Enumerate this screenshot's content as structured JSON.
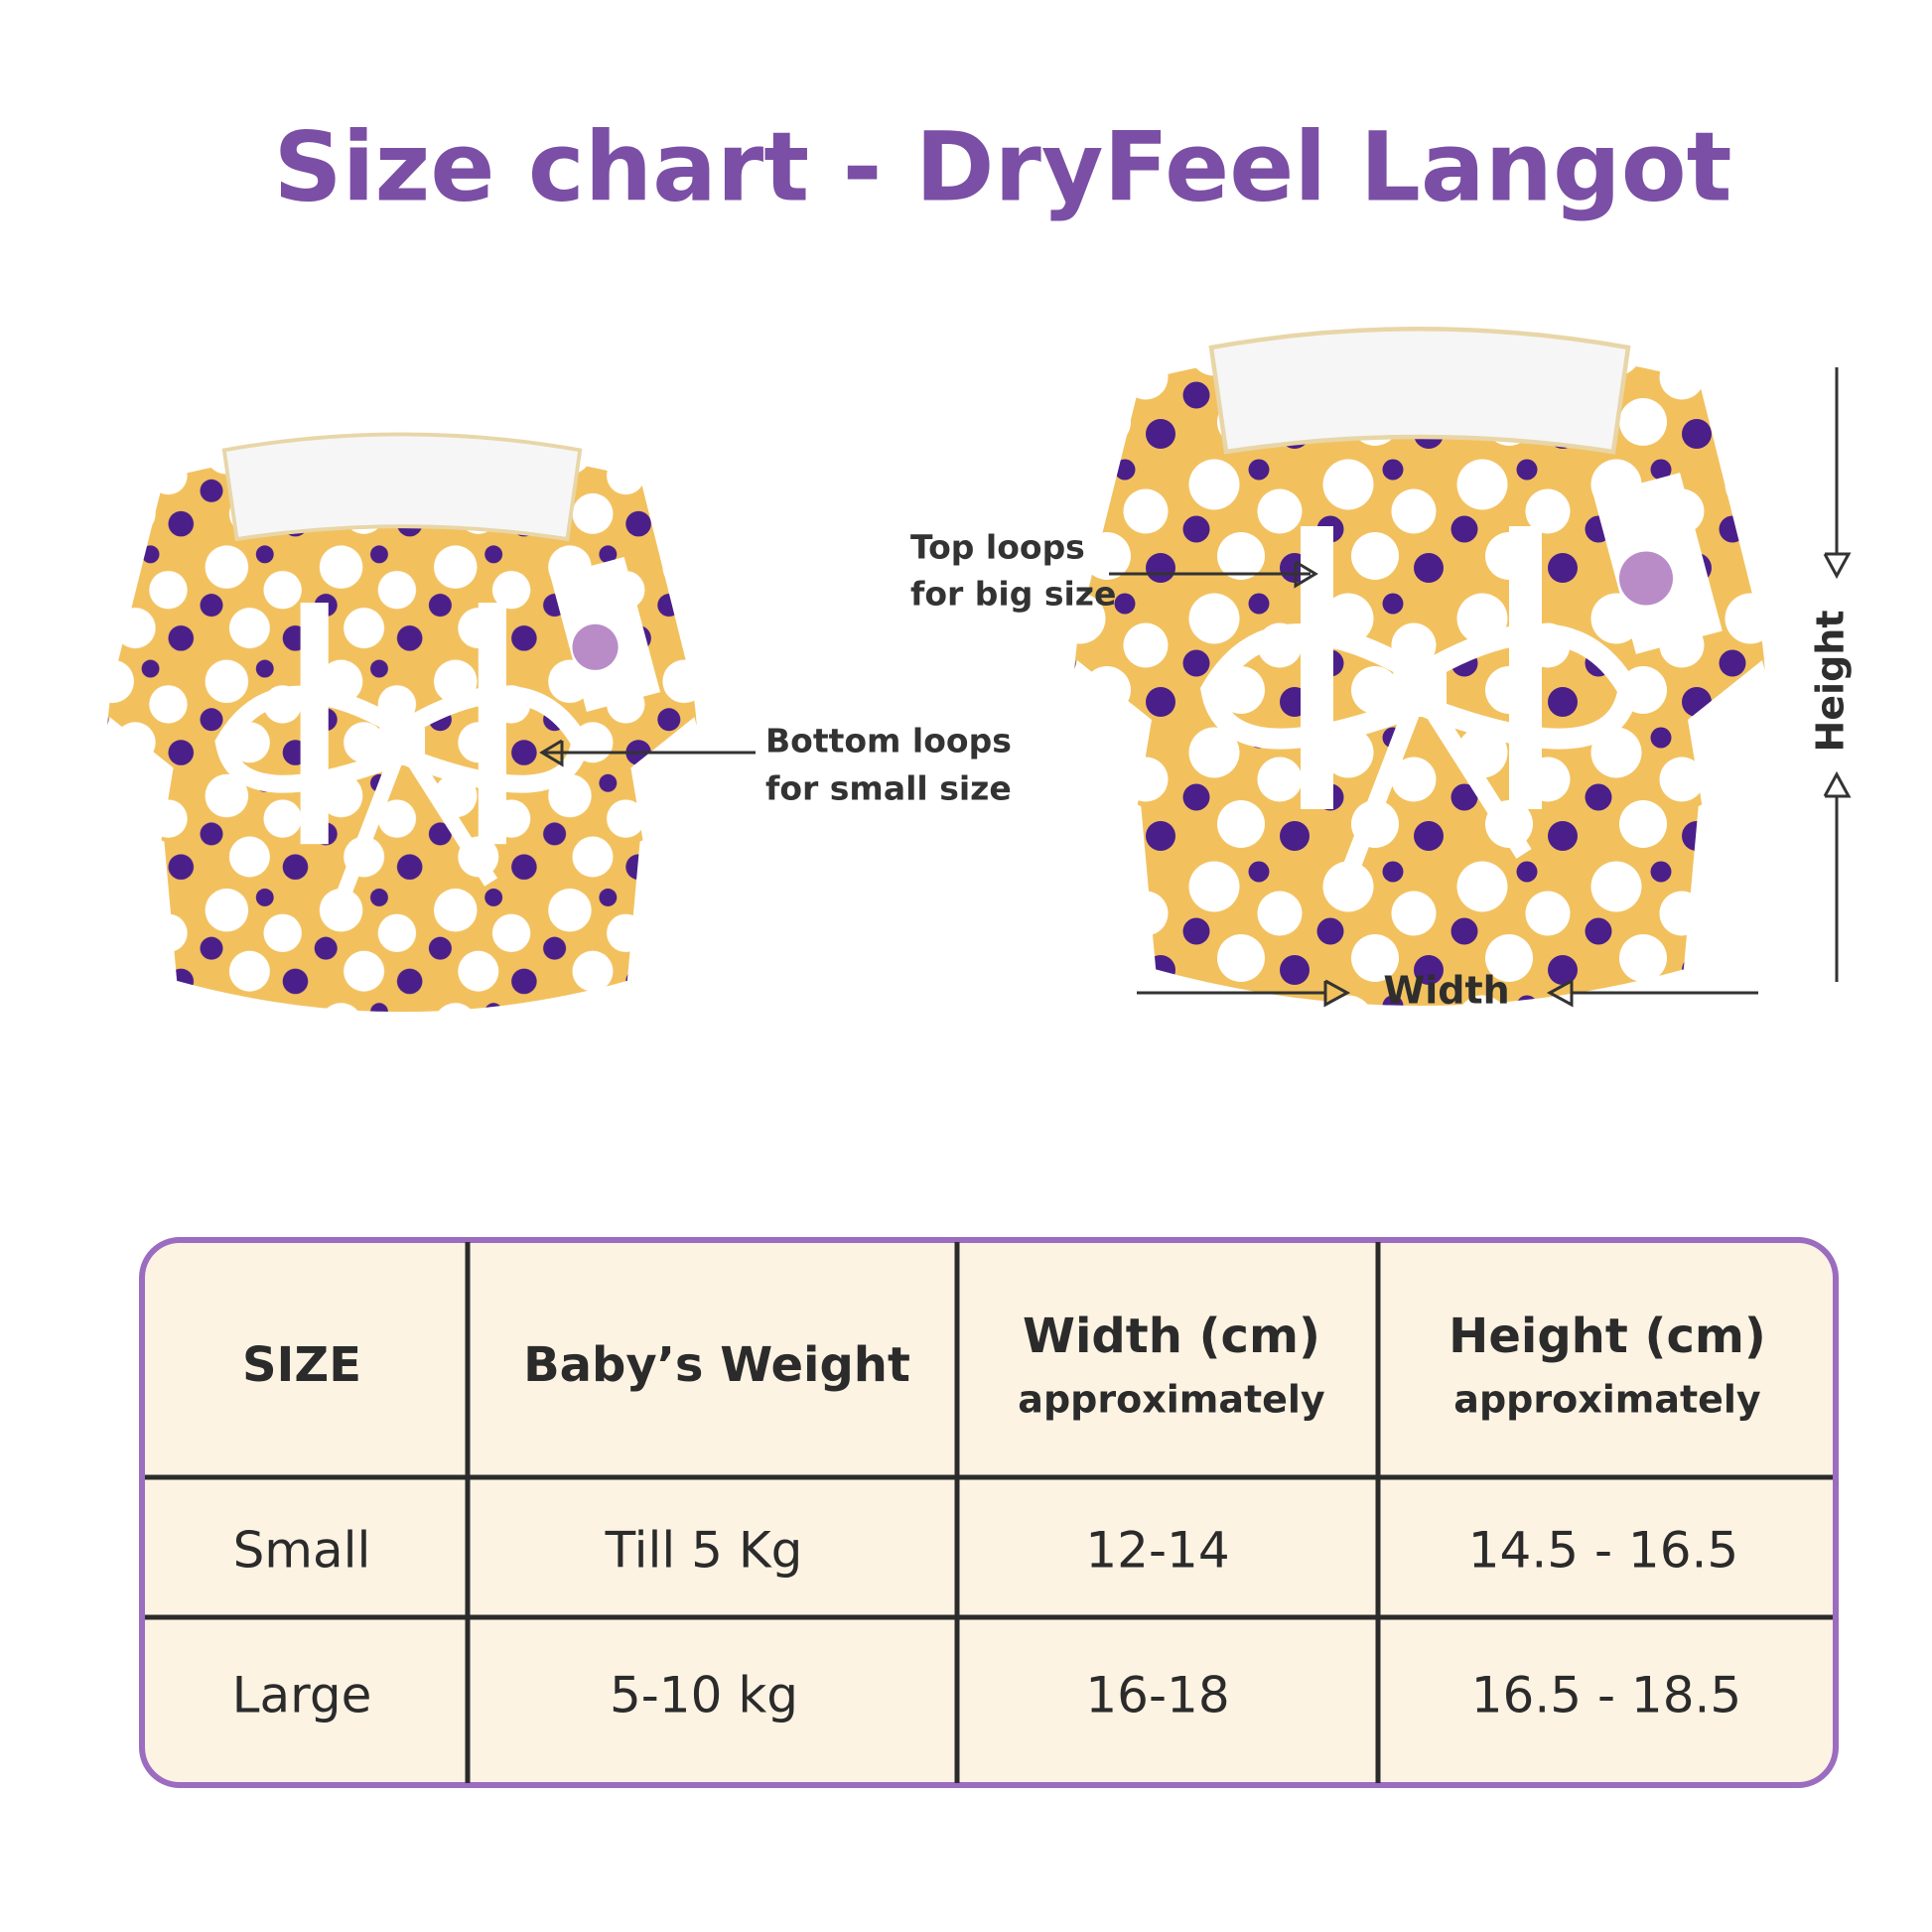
{
  "header": {
    "title": "Size chart - DryFeel Langot"
  },
  "annotations": {
    "top_loops": [
      "Top loops",
      "for big size"
    ],
    "bottom_loops": [
      "Bottom loops",
      "for small size"
    ],
    "width": "Width",
    "height": "Height"
  },
  "table": {
    "columns": [
      {
        "title": "SIZE"
      },
      {
        "title": "Baby’s Weight"
      },
      {
        "title": "Width (cm)",
        "subtitle": "approximately"
      },
      {
        "title": "Height (cm)",
        "subtitle": "approximately"
      }
    ],
    "rows": [
      [
        "Small",
        "Till 5 Kg",
        "12-14",
        "14.5 - 16.5"
      ],
      [
        "Large",
        "5-10 kg",
        "16-18",
        "16.5 - 18.5"
      ]
    ]
  }
}
